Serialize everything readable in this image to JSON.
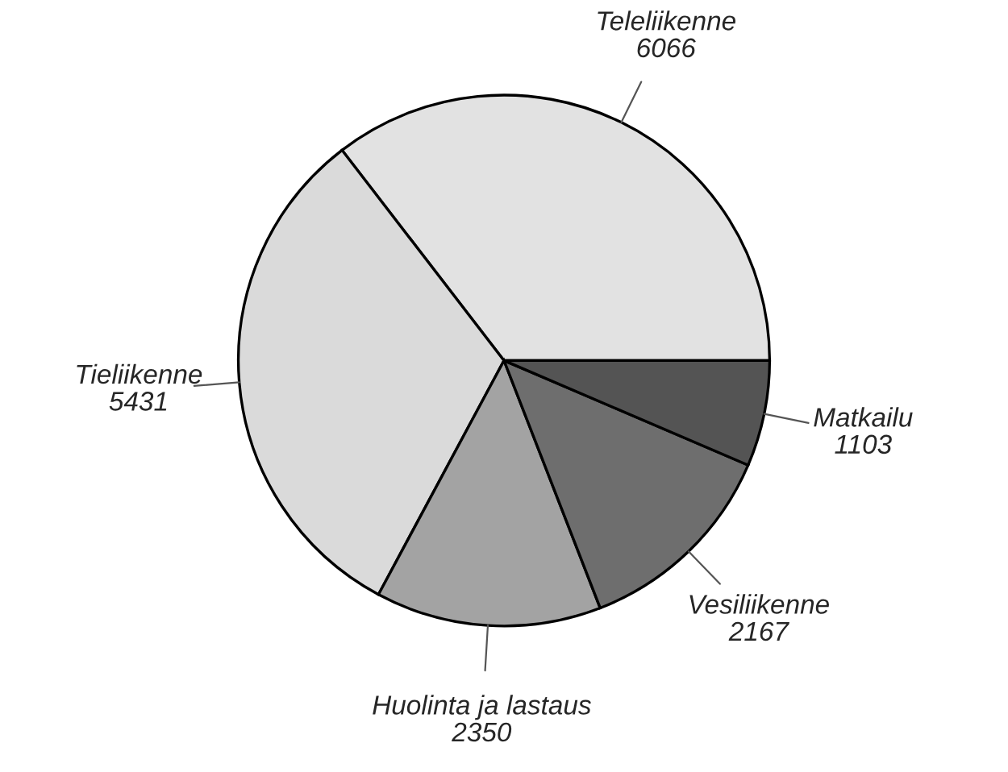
{
  "chart_data": {
    "type": "pie",
    "categories": [
      "Teleliikenne",
      "Tieliikenne",
      "Huolinta ja lastaus",
      "Vesiliikenne",
      "Matkailu"
    ],
    "values": [
      6066,
      5431,
      2350,
      2167,
      1103
    ],
    "colors": [
      "#e2e2e2",
      "#dadada",
      "#a3a3a3",
      "#6e6e6e",
      "#545454"
    ],
    "data_labels": true
  }
}
